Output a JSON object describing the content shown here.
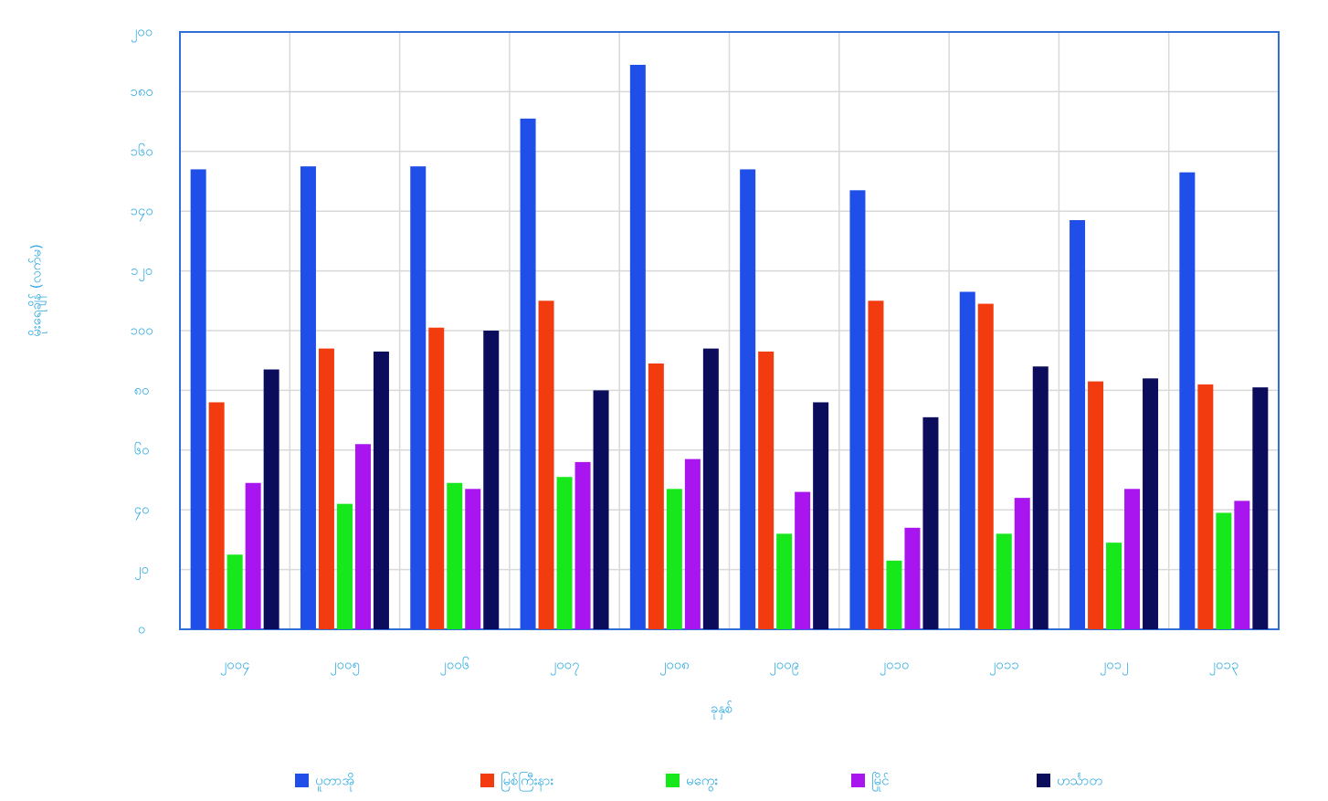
{
  "chart_data": {
    "type": "bar",
    "x_label": "ခုနှစ်",
    "y_label": "မိုးရေချိန် (လက်မ)",
    "categories": [
      "၂၀၀၄",
      "၂၀၀၅",
      "၂၀၀၆",
      "၂၀၀၇",
      "၂၀၀၈",
      "၂၀၀၉",
      "၂၀၁၀",
      "၂၀၁၁",
      "၂၀၁၂",
      "၂၀၁၃"
    ],
    "series": [
      {
        "name": "ပူတာအို",
        "color": "#1f4fe8",
        "values": [
          154,
          155,
          155,
          171,
          189,
          154,
          147,
          113,
          137,
          153
        ]
      },
      {
        "name": "မြစ်ကြီးနား",
        "color": "#f23c10",
        "values": [
          76,
          94,
          101,
          110,
          89,
          93,
          110,
          109,
          83,
          82
        ]
      },
      {
        "name": "မကွေး",
        "color": "#16e81c",
        "values": [
          25,
          42,
          49,
          51,
          47,
          32,
          23,
          32,
          29,
          39
        ]
      },
      {
        "name": "မြိုင်",
        "color": "#a815ee",
        "values": [
          49,
          62,
          47,
          56,
          57,
          46,
          34,
          44,
          47,
          43
        ]
      },
      {
        "name": "ဟင်္သာတ",
        "color": "#0b0c5c",
        "values": [
          87,
          93,
          100,
          80,
          94,
          76,
          71,
          88,
          84,
          81
        ]
      }
    ],
    "ylim": [
      0,
      200
    ],
    "yticks": [
      {
        "value": 0,
        "label": "၀"
      },
      {
        "value": 20,
        "label": "၂၀"
      },
      {
        "value": 40,
        "label": "၄၀"
      },
      {
        "value": 60,
        "label": "၆၀"
      },
      {
        "value": 80,
        "label": "၈၀"
      },
      {
        "value": 100,
        "label": "၁၀၀"
      },
      {
        "value": 120,
        "label": "၁၂၀"
      },
      {
        "value": 140,
        "label": "၁၄၀"
      },
      {
        "value": 160,
        "label": "၁၆၀"
      },
      {
        "value": 180,
        "label": "၁၈၀"
      },
      {
        "value": 200,
        "label": "၂၀၀"
      }
    ],
    "grid": true
  }
}
